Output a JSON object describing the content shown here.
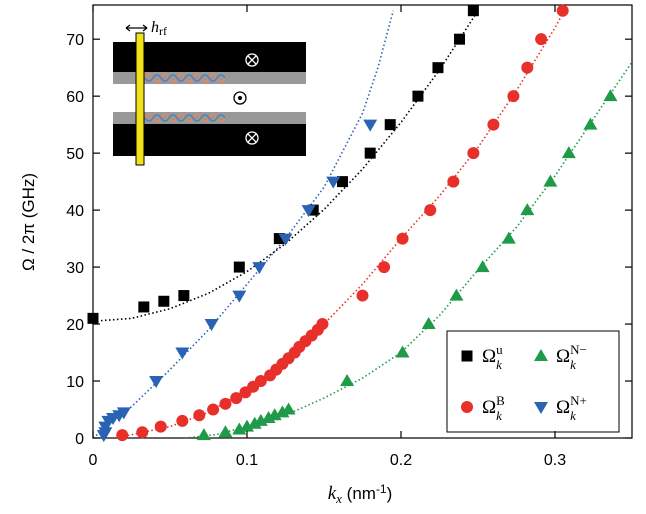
{
  "chart_data": {
    "type": "scatter",
    "xlabel": "k",
    "xlabel_sub": "x",
    "xlabel_unit": " (nm",
    "xlabel_unit_sup": "-1",
    "xlabel_end": ")",
    "ylabel": "Ω / 2π (GHz)",
    "xlim": [
      0,
      0.35
    ],
    "ylim": [
      0,
      76
    ],
    "xticks": [
      0,
      0.1,
      0.2,
      0.3
    ],
    "yticks": [
      0,
      10,
      20,
      30,
      40,
      50,
      60,
      70
    ],
    "legend": "lower right",
    "series": [
      {
        "name": "Ω",
        "name_sub": "k",
        "name_sup": "u",
        "color": "#000000",
        "marker": "square",
        "x": [
          0,
          0.033,
          0.046,
          0.059,
          0.095,
          0.121,
          0.143,
          0.162,
          0.18,
          0.193,
          0.211,
          0.224,
          0.238,
          0.247
        ],
        "values": [
          21,
          23,
          24,
          25,
          30,
          35,
          40,
          45,
          50,
          55,
          60,
          65,
          70,
          75
        ]
      },
      {
        "name": "Ω",
        "name_sub": "k",
        "name_sup": "B",
        "color": "#e8302a",
        "marker": "circle",
        "x": [
          0.019,
          0.032,
          0.044,
          0.058,
          0.069,
          0.078,
          0.086,
          0.093,
          0.099,
          0.104,
          0.109,
          0.115,
          0.119,
          0.123,
          0.127,
          0.131,
          0.134,
          0.138,
          0.142,
          0.146,
          0.149,
          0.175,
          0.189,
          0.201,
          0.219,
          0.234,
          0.247,
          0.26,
          0.273,
          0.282,
          0.291,
          0.305
        ],
        "values": [
          0.5,
          1,
          2,
          3,
          4,
          5,
          6,
          7,
          8,
          9,
          10,
          11,
          12,
          13,
          14,
          15,
          16,
          17,
          18,
          19,
          20,
          25,
          30,
          35,
          40,
          45,
          50,
          55,
          60,
          65,
          70,
          75
        ]
      },
      {
        "name": "Ω",
        "name_sub": "k",
        "name_sup": "N+",
        "color": "#2a63b4",
        "marker": "triangle-down",
        "x": [
          0.007,
          0.008,
          0.008,
          0.01,
          0.013,
          0.017,
          0.02,
          0.041,
          0.058,
          0.077,
          0.095,
          0.108,
          0.125,
          0.14,
          0.156,
          0.18
        ],
        "values": [
          0.5,
          1,
          2,
          3,
          3.5,
          4,
          4.5,
          10,
          15,
          20,
          25,
          30,
          35,
          40,
          45,
          55
        ]
      },
      {
        "name": "Ω",
        "name_sub": "k",
        "name_sup": "N−",
        "color": "#1e9a48",
        "marker": "triangle-up",
        "x": [
          0.072,
          0.086,
          0.095,
          0.1,
          0.105,
          0.109,
          0.114,
          0.118,
          0.123,
          0.127,
          0.165,
          0.201,
          0.218,
          0.236,
          0.253,
          0.27,
          0.282,
          0.297,
          0.309,
          0.323,
          0.336
        ],
        "values": [
          0.5,
          1,
          1.5,
          2,
          2.5,
          3,
          3.5,
          4,
          4.5,
          5,
          10,
          15,
          20,
          25,
          30,
          35,
          40,
          45,
          50,
          55,
          60
        ]
      }
    ],
    "fits": [
      {
        "color": "#000000",
        "x": [
          0,
          0.025,
          0.05,
          0.075,
          0.1,
          0.125,
          0.15,
          0.175,
          0.2,
          0.225,
          0.25
        ],
        "values": [
          20.5,
          21,
          22.7,
          25.4,
          29.2,
          34.1,
          40.1,
          47.2,
          55.4,
          64.6,
          75
        ]
      },
      {
        "color": "#e8302a",
        "x": [
          0.015,
          0.05,
          0.075,
          0.1,
          0.125,
          0.15,
          0.175,
          0.2,
          0.225,
          0.25,
          0.275,
          0.3,
          0.308
        ],
        "values": [
          0,
          2,
          4.5,
          8.5,
          13.5,
          20,
          27,
          35,
          42.5,
          51,
          61,
          72,
          76
        ]
      },
      {
        "color": "#2a63b4",
        "x": [
          0,
          0.025,
          0.05,
          0.075,
          0.1,
          0.125,
          0.15,
          0.175,
          0.185,
          0.195
        ],
        "values": [
          0,
          5.5,
          12,
          19,
          27,
          35,
          44,
          57,
          65,
          75
        ]
      },
      {
        "color": "#1e9a48",
        "x": [
          0.06,
          0.08,
          0.1,
          0.125,
          0.15,
          0.175,
          0.2,
          0.225,
          0.25,
          0.275,
          0.3,
          0.325,
          0.35
        ],
        "values": [
          0,
          0.6,
          2,
          4,
          7,
          10.5,
          15,
          21.5,
          29.5,
          37,
          46,
          56,
          66
        ]
      }
    ],
    "inset": {
      "label": "h",
      "label_sub": "rf"
    }
  }
}
